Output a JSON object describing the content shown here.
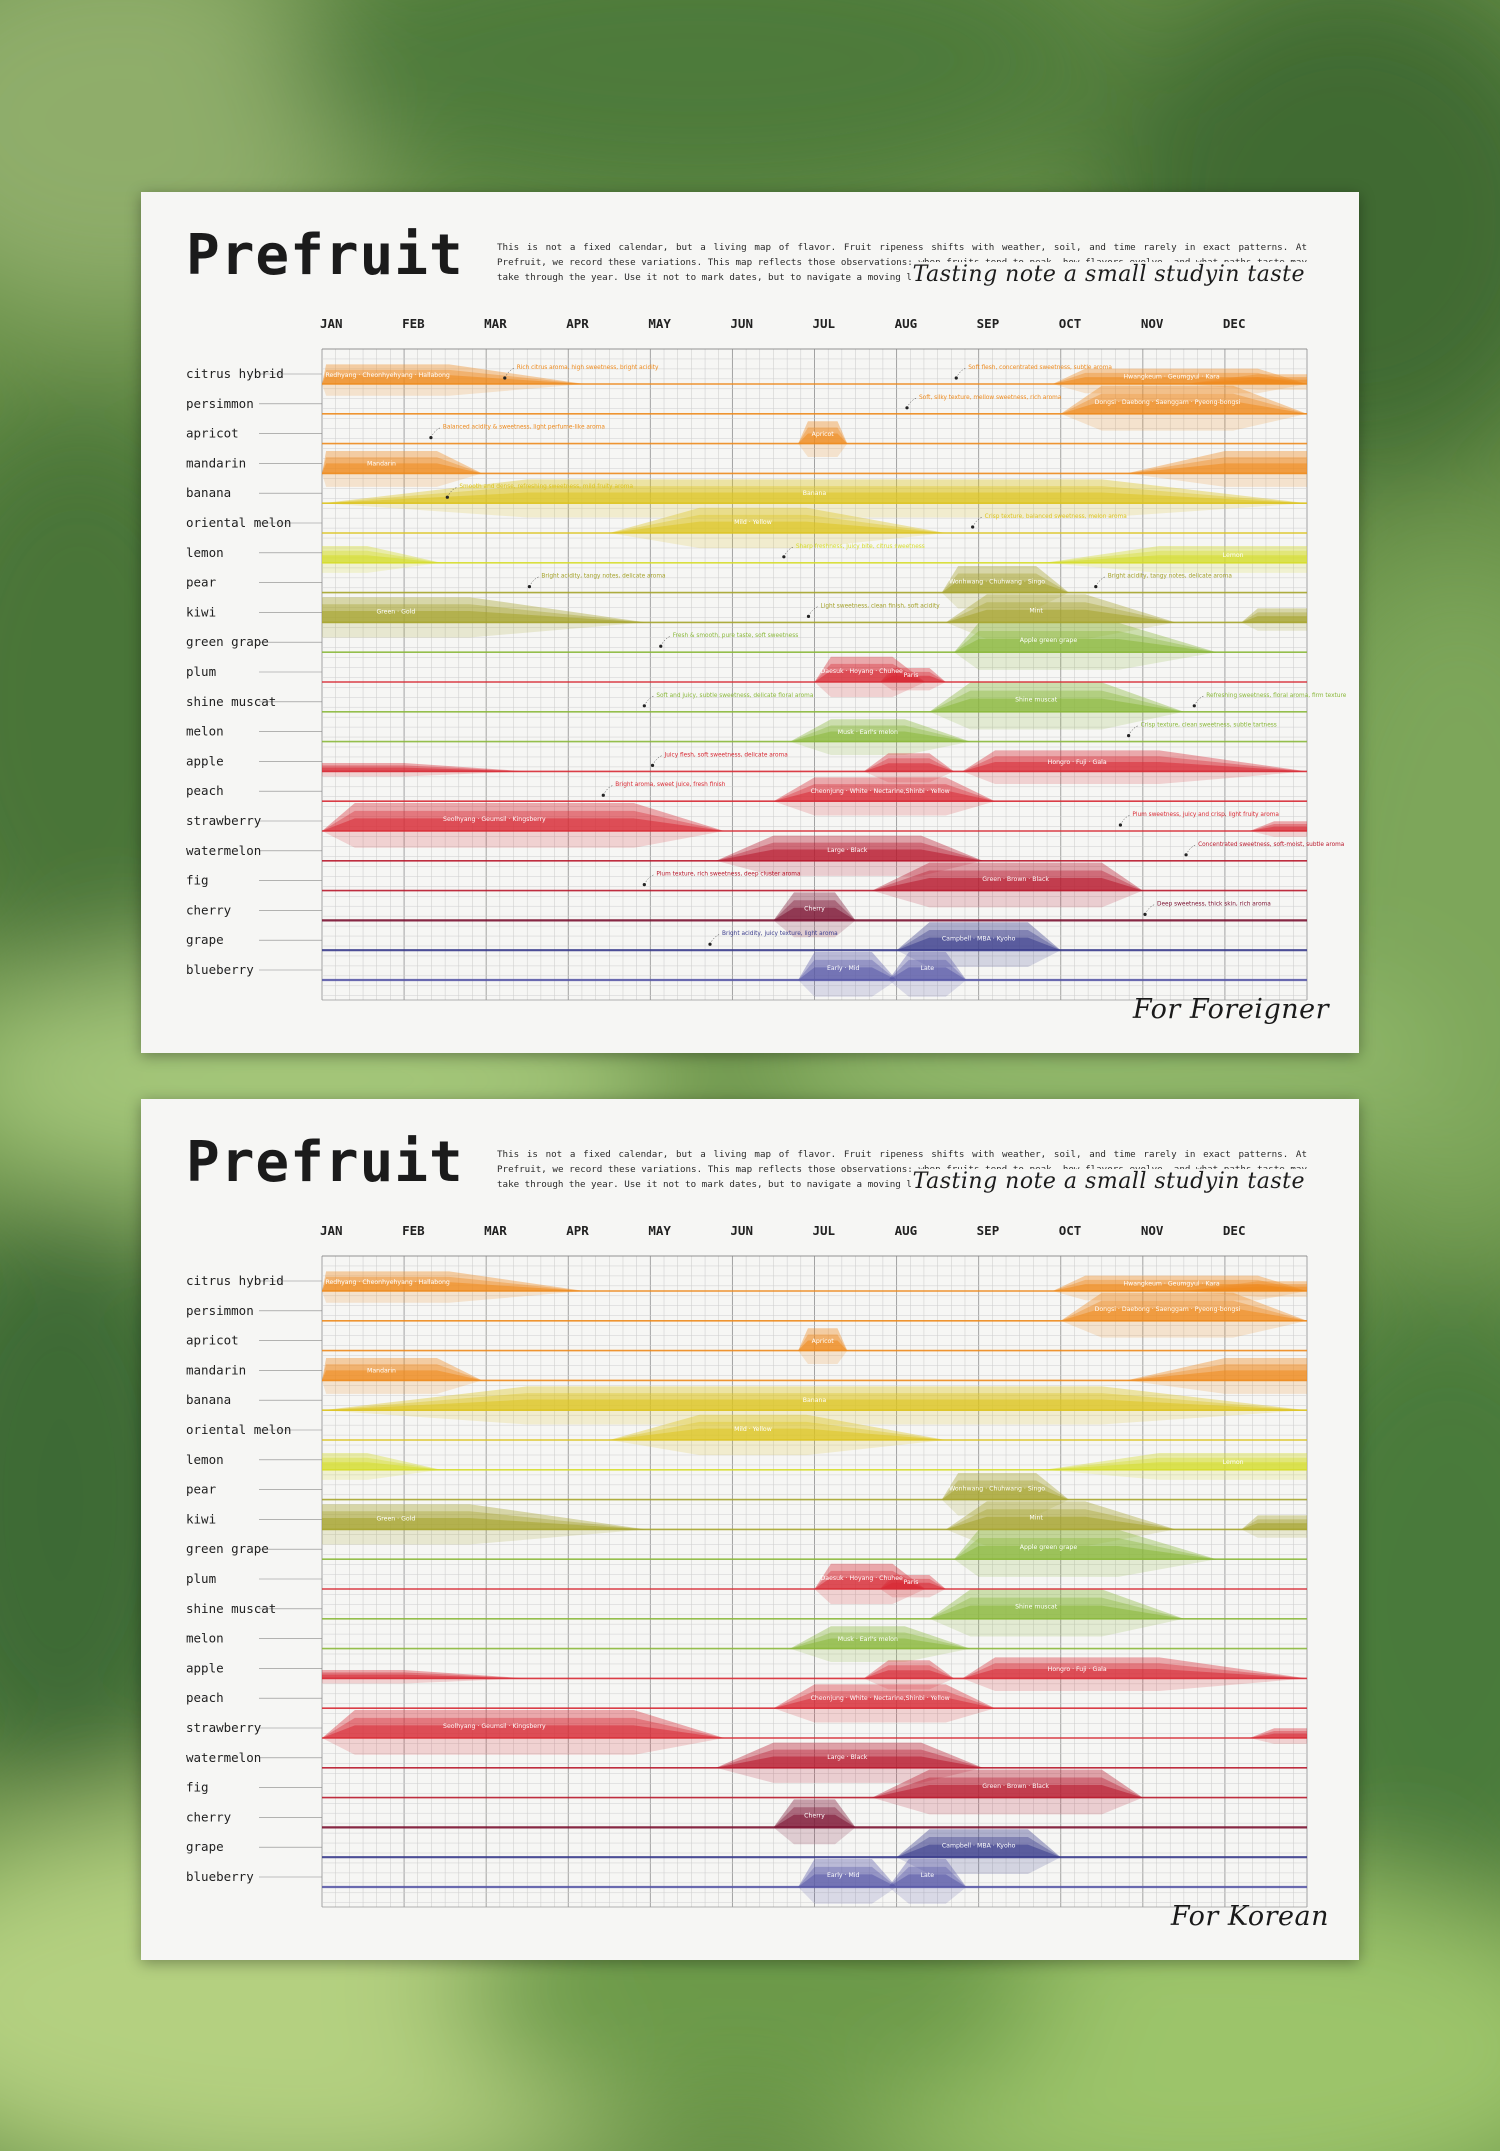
{
  "title": "Prefruit",
  "description": "This is not a fixed calendar, but a living map of flavor. Fruit ripeness shifts with weather, soil, and time rarely in exact patterns. At Prefruit, we record these variations. This map reflects those observations: when fruits tend to peak, how flavors evolve, and what paths taste may take through the year. Use it not to mark dates, but to navigate a moving landscape of taste.",
  "tagline": "Tasting note a small studyin taste",
  "posters": [
    {
      "label": "For Foreigner",
      "annotated": true
    },
    {
      "label": "For Korean",
      "annotated": false
    }
  ],
  "chart_data": {
    "type": "area",
    "x_unit": "month (1 = start of JAN, 13 = end of DEC)",
    "months": [
      "JAN",
      "FEB",
      "MAR",
      "APR",
      "MAY",
      "JUN",
      "JUL",
      "AUG",
      "SEP",
      "OCT",
      "NOV",
      "DEC"
    ],
    "colors": {
      "orange": "#ee8a1c",
      "yellow": "#dcc420",
      "lime": "#d6dd2c",
      "olive": "#a6a42c",
      "green": "#8ab83a",
      "red": "#d82a34",
      "crimson": "#b8182c",
      "maroon": "#7c1232",
      "navy": "#3a3c8c",
      "indigo": "#5a5aa8"
    },
    "series": [
      {
        "name": "citrus hybrid",
        "color": "orange",
        "bands": [
          {
            "s": 1.0,
            "ps": 1.05,
            "pe": 2.55,
            "e": 4.2,
            "h": 0.7,
            "label": "Redhyang · Cheonhyehyang · Hallabong"
          },
          {
            "s": 9.9,
            "ps": 10.3,
            "pe": 12.4,
            "e": 13.0,
            "h": 0.55,
            "label": "Hwangkeum · Geumgyul · Kara"
          },
          {
            "s": 11.5,
            "ps": 12.4,
            "pe": 13.0,
            "e": 13.0,
            "h": 0.35,
            "label": ""
          }
        ],
        "notes": [
          {
            "x": 3.3,
            "label": "Rich citrus aroma, high sweetness, bright acidity"
          },
          {
            "x": 8.8,
            "label": "Soft flesh, concentrated sweetness, subtle aroma"
          }
        ]
      },
      {
        "name": "persimmon",
        "color": "orange",
        "bands": [
          {
            "s": 10.0,
            "ps": 10.5,
            "pe": 12.1,
            "e": 13.0,
            "h": 1.0,
            "label": "Dongsi · Daebong · Saenggam · Pyeong-bongsi"
          }
        ],
        "notes": [
          {
            "x": 8.2,
            "label": "Soft, silky texture, mellow sweetness, rich aroma"
          }
        ]
      },
      {
        "name": "apricot",
        "color": "orange",
        "bands": [
          {
            "s": 6.8,
            "ps": 6.92,
            "pe": 7.28,
            "e": 7.4,
            "h": 0.8,
            "label": "Apricot"
          }
        ],
        "notes": [
          {
            "x": 2.4,
            "label": "Balanced acidity & sweetness, light perfume-like aroma"
          }
        ]
      },
      {
        "name": "mandarin",
        "color": "orange",
        "bands": [
          {
            "s": 1.0,
            "ps": 1.05,
            "pe": 2.4,
            "e": 2.95,
            "h": 0.8,
            "label": "Mandarin"
          },
          {
            "s": 10.8,
            "ps": 12.0,
            "pe": 13.0,
            "e": 13.0,
            "h": 0.8,
            "label": ""
          }
        ],
        "notes": []
      },
      {
        "name": "banana",
        "color": "yellow",
        "bands": [
          {
            "s": 1.0,
            "ps": 3.5,
            "pe": 10.5,
            "e": 13.0,
            "h": 0.85,
            "label": "Banana"
          }
        ],
        "notes": [
          {
            "x": 2.6,
            "label": "Smooth and dense, refreshing sweetness, mild fruity aroma"
          }
        ]
      },
      {
        "name": "oriental melon",
        "color": "yellow",
        "bands": [
          {
            "s": 4.5,
            "ps": 5.6,
            "pe": 6.9,
            "e": 8.6,
            "h": 0.9,
            "label": "Mild · Yellow"
          }
        ],
        "notes": [
          {
            "x": 9.0,
            "label": "Crisp texture, balanced sweetness, melon aroma"
          }
        ]
      },
      {
        "name": "lemon",
        "color": "lime",
        "bands": [
          {
            "s": 1.0,
            "ps": 1.0,
            "pe": 1.55,
            "e": 2.45,
            "h": 0.6,
            "label": ""
          },
          {
            "s": 9.8,
            "ps": 11.2,
            "pe": 13.0,
            "e": 13.0,
            "h": 0.6,
            "label": "Lemon"
          }
        ],
        "notes": [
          {
            "x": 6.7,
            "label": "Sharp freshness, juicy bite, citrus sweetness"
          }
        ]
      },
      {
        "name": "pear",
        "color": "olive",
        "bands": [
          {
            "s": 8.55,
            "ps": 8.75,
            "pe": 9.7,
            "e": 10.1,
            "h": 0.95,
            "label": "Wonhwang · Chuhwang · Singo"
          }
        ],
        "notes": [
          {
            "x": 3.6,
            "label": "Bright acidity, tangy notes, delicate aroma"
          },
          {
            "x": 10.5,
            "label": "Bright acidity, tangy notes, delicate aroma"
          }
        ]
      },
      {
        "name": "kiwi",
        "color": "olive",
        "bands": [
          {
            "s": 1.0,
            "ps": 1.0,
            "pe": 2.8,
            "e": 4.95,
            "h": 0.9,
            "label": "Green · Gold"
          },
          {
            "s": 8.6,
            "ps": 9.1,
            "pe": 10.3,
            "e": 11.4,
            "h": 1.0,
            "label": "Mint"
          },
          {
            "s": 12.2,
            "ps": 12.4,
            "pe": 13.0,
            "e": 13.0,
            "h": 0.5,
            "label": ""
          }
        ],
        "notes": [
          {
            "x": 7.0,
            "label": "Light sweetness, clean finish, soft acidity"
          }
        ]
      },
      {
        "name": "green grape",
        "color": "green",
        "bands": [
          {
            "s": 8.7,
            "ps": 9.0,
            "pe": 10.7,
            "e": 11.9,
            "h": 1.05,
            "label": "Apple green grape"
          }
        ],
        "notes": [
          {
            "x": 5.2,
            "label": "Fresh & smooth, pure taste, soft sweetness"
          }
        ]
      },
      {
        "name": "plum",
        "color": "red",
        "bands": [
          {
            "s": 7.0,
            "ps": 7.2,
            "pe": 7.95,
            "e": 8.35,
            "h": 0.9,
            "label": "Daesuk · Hoyang · Chuhee"
          },
          {
            "s": 7.8,
            "ps": 7.95,
            "pe": 8.4,
            "e": 8.6,
            "h": 0.5,
            "label": "Paris"
          }
        ],
        "notes": []
      },
      {
        "name": "shine muscat",
        "color": "green",
        "bands": [
          {
            "s": 8.4,
            "ps": 8.9,
            "pe": 10.5,
            "e": 11.5,
            "h": 1.05,
            "label": "Shine muscat"
          }
        ],
        "notes": [
          {
            "x": 5.0,
            "label": "Soft and juicy, subtle sweetness, delicate floral aroma"
          },
          {
            "x": 11.7,
            "label": "Refreshing sweetness, floral aroma, firm texture"
          }
        ]
      },
      {
        "name": "melon",
        "color": "green",
        "bands": [
          {
            "s": 6.7,
            "ps": 7.2,
            "pe": 8.1,
            "e": 8.9,
            "h": 0.8,
            "label": "Musk · Earl's melon"
          }
        ],
        "notes": [
          {
            "x": 10.9,
            "label": "Crisp texture, clean sweetness, subtle tartness"
          }
        ]
      },
      {
        "name": "apple",
        "color": "red",
        "bands": [
          {
            "s": 1.0,
            "ps": 1.0,
            "pe": 2.0,
            "e": 3.5,
            "h": 0.3,
            "label": ""
          },
          {
            "s": 8.8,
            "ps": 9.2,
            "pe": 11.2,
            "e": 13.0,
            "h": 0.75,
            "label": "Hongro · Fuji · Gala"
          },
          {
            "s": 7.6,
            "ps": 7.9,
            "pe": 8.4,
            "e": 8.7,
            "h": 0.65,
            "label": ""
          }
        ],
        "notes": [
          {
            "x": 5.1,
            "label": "Juicy flesh, soft sweetness, delicate aroma"
          }
        ]
      },
      {
        "name": "peach",
        "color": "red",
        "bands": [
          {
            "s": 6.5,
            "ps": 7.0,
            "pe": 8.6,
            "e": 9.2,
            "h": 0.85,
            "label": "Cheonjung · White · Nectarine,Shinbi · Yellow"
          }
        ],
        "notes": [
          {
            "x": 4.5,
            "label": "Bright aroma, sweet juice, fresh finish"
          }
        ]
      },
      {
        "name": "strawberry",
        "color": "red",
        "bands": [
          {
            "s": 1.0,
            "ps": 1.4,
            "pe": 4.8,
            "e": 5.9,
            "h": 1.0,
            "label": "Seolhyang · Geumsil · Kingsberry"
          },
          {
            "s": 12.3,
            "ps": 12.6,
            "pe": 13.0,
            "e": 13.0,
            "h": 0.35,
            "label": ""
          }
        ],
        "notes": [
          {
            "x": 10.8,
            "label": "Plum sweetness, juicy and crisp, light fruity aroma"
          }
        ]
      },
      {
        "name": "watermelon",
        "color": "crimson",
        "bands": [
          {
            "s": 5.8,
            "ps": 6.5,
            "pe": 8.3,
            "e": 9.05,
            "h": 0.9,
            "label": "Large · Black"
          }
        ],
        "notes": [
          {
            "x": 11.6,
            "label": "Concentrated sweetness, soft-moist, subtle aroma"
          }
        ]
      },
      {
        "name": "fig",
        "color": "crimson",
        "bands": [
          {
            "s": 7.7,
            "ps": 8.4,
            "pe": 10.5,
            "e": 11.0,
            "h": 1.0,
            "label": "Green · Brown · Black"
          }
        ],
        "notes": [
          {
            "x": 5.0,
            "label": "Plum texture, rich sweetness, deep cluster aroma"
          }
        ]
      },
      {
        "name": "cherry",
        "color": "maroon",
        "bands": [
          {
            "s": 6.5,
            "ps": 6.75,
            "pe": 7.25,
            "e": 7.5,
            "h": 1.0,
            "label": "Cherry"
          }
        ],
        "notes": [
          {
            "x": 11.1,
            "label": "Deep sweetness, thick skin, rich aroma"
          }
        ]
      },
      {
        "name": "grape",
        "color": "navy",
        "bands": [
          {
            "s": 8.0,
            "ps": 8.4,
            "pe": 9.6,
            "e": 10.0,
            "h": 1.0,
            "label": "Campbell · MBA · Kyoho"
          }
        ],
        "notes": [
          {
            "x": 5.8,
            "label": "Bright acidity, juicy texture, light aroma"
          }
        ]
      },
      {
        "name": "blueberry",
        "color": "indigo",
        "bands": [
          {
            "s": 6.8,
            "ps": 7.0,
            "pe": 7.7,
            "e": 8.0,
            "h": 1.0,
            "label": "Early · Mid"
          },
          {
            "s": 7.9,
            "ps": 8.15,
            "pe": 8.6,
            "e": 8.85,
            "h": 1.0,
            "label": "Late"
          }
        ],
        "notes": []
      }
    ]
  }
}
